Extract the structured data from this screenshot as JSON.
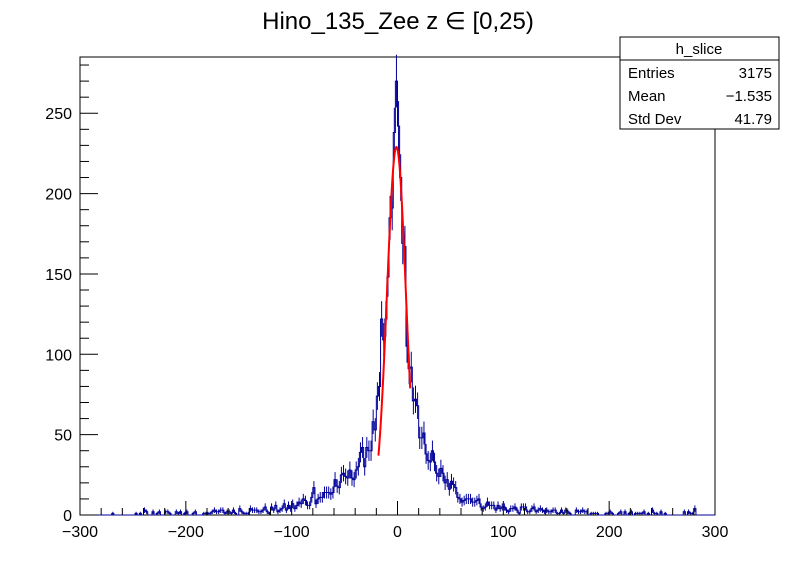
{
  "chart_data": {
    "type": "histogram",
    "title": "Hino_135_Zee z  ∈ [0,25)",
    "xlabel": "",
    "ylabel": "",
    "xlim": [
      -300,
      300
    ],
    "ylim": [
      0,
      285
    ],
    "x_ticks": [
      -300,
      -200,
      -100,
      0,
      100,
      200,
      300
    ],
    "x_tick_labels": [
      "−300",
      "−200",
      "−100",
      "0",
      "100",
      "200",
      "300"
    ],
    "y_ticks": [
      0,
      50,
      100,
      150,
      200,
      250
    ],
    "y_tick_labels": [
      "0",
      "50",
      "100",
      "150",
      "200",
      "250"
    ],
    "grid": false,
    "histogram_color": "#000099",
    "fit_color": "#ff0000",
    "bin_width": 2,
    "histogram": {
      "profile_points": [
        [
          -300,
          0
        ],
        [
          -250,
          1
        ],
        [
          -200,
          1
        ],
        [
          -150,
          2
        ],
        [
          -120,
          3
        ],
        [
          -100,
          5
        ],
        [
          -80,
          9
        ],
        [
          -60,
          15
        ],
        [
          -50,
          22
        ],
        [
          -40,
          28
        ],
        [
          -30,
          38
        ],
        [
          -25,
          45
        ],
        [
          -20,
          60
        ],
        [
          -15,
          85
        ],
        [
          -12,
          110
        ],
        [
          -10,
          135
        ],
        [
          -8,
          160
        ],
        [
          -6,
          185
        ],
        [
          -4,
          210
        ],
        [
          -2,
          245
        ],
        [
          0,
          255
        ],
        [
          2,
          220
        ],
        [
          4,
          195
        ],
        [
          6,
          170
        ],
        [
          8,
          140
        ],
        [
          10,
          110
        ],
        [
          12,
          95
        ],
        [
          15,
          75
        ],
        [
          20,
          52
        ],
        [
          25,
          45
        ],
        [
          30,
          38
        ],
        [
          40,
          25
        ],
        [
          50,
          18
        ],
        [
          60,
          12
        ],
        [
          80,
          7
        ],
        [
          100,
          4
        ],
        [
          150,
          2
        ],
        [
          200,
          1
        ],
        [
          250,
          1
        ],
        [
          300,
          0
        ]
      ],
      "spikes": [
        [
          -1,
          270
        ],
        [
          -15,
          122
        ],
        [
          -10,
          148
        ],
        [
          18,
          68
        ],
        [
          8,
          105
        ],
        [
          -30,
          42
        ],
        [
          20,
          48
        ],
        [
          35,
          33
        ],
        [
          45,
          20
        ],
        [
          -80,
          17
        ],
        [
          -60,
          22
        ],
        [
          -45,
          28
        ],
        [
          70,
          8
        ],
        [
          -150,
          4
        ],
        [
          280,
          4
        ],
        [
          240,
          3
        ],
        [
          -240,
          3
        ],
        [
          155,
          3
        ],
        [
          -140,
          4
        ],
        [
          -90,
          10
        ],
        [
          90,
          6
        ],
        [
          120,
          5
        ],
        [
          -200,
          2
        ],
        [
          210,
          2
        ]
      ]
    },
    "fit": {
      "type": "gaussian",
      "amplitude": 229,
      "mean": -1.0,
      "sigma": 8.9,
      "range": [
        -18,
        12
      ]
    },
    "stats_box": {
      "name": "h_slice",
      "rows": [
        {
          "label": "Entries",
          "value": "3175"
        },
        {
          "label": "Mean",
          "value": "−1.535"
        },
        {
          "label": "Std Dev",
          "value": "41.79"
        }
      ]
    }
  }
}
